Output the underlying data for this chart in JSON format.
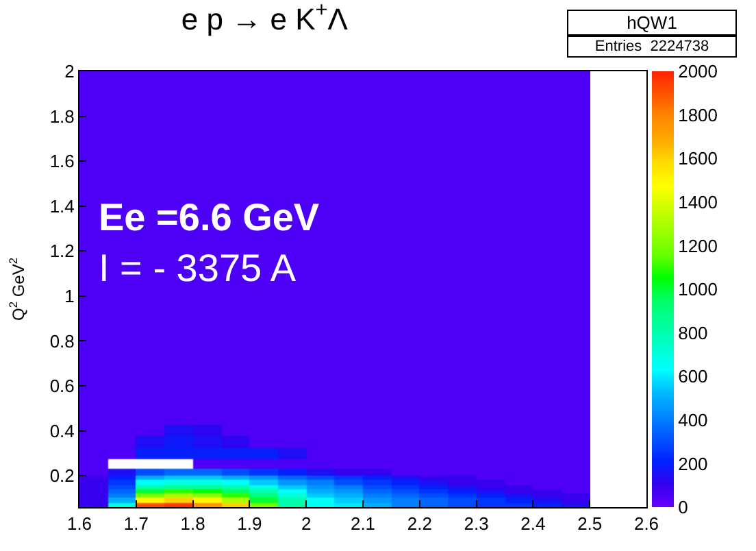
{
  "chart_data": {
    "type": "heatmap",
    "title": "e p → e K$^{+}$Λ",
    "ylabel": "Q$^{2}$ GeV$^{2}$",
    "annotations": [
      "Ee =6.6 GeV",
      "I = - 3375 A",
      "hQW1",
      "Entries  2224738"
    ],
    "x": [
      1.625,
      1.675,
      1.725,
      1.775,
      1.825,
      1.875,
      1.925,
      1.975,
      2.025,
      2.075,
      2.125,
      2.175,
      2.225,
      2.275,
      2.325,
      2.375,
      2.425,
      2.475
    ],
    "y": [
      1.95,
      1.85,
      1.75,
      1.65,
      1.55,
      1.45,
      1.35,
      1.25,
      1.15,
      1.05,
      0.95,
      0.85,
      0.75,
      0.65,
      0.55,
      0.45,
      0.4,
      0.35,
      0.3,
      0.25,
      0.21,
      0.19,
      0.17,
      0.15,
      0.13,
      0.11,
      0.09,
      0.07
    ],
    "cells": [
      [
        50,
        50,
        50,
        50,
        50,
        50,
        50,
        50,
        50,
        50,
        50,
        50,
        50,
        50,
        50,
        50,
        50,
        50
      ],
      [
        50,
        50,
        50,
        50,
        50,
        50,
        50,
        50,
        50,
        50,
        50,
        50,
        50,
        50,
        50,
        50,
        50,
        50
      ],
      [
        50,
        50,
        50,
        50,
        50,
        50,
        50,
        50,
        50,
        50,
        50,
        50,
        50,
        50,
        50,
        50,
        50,
        50
      ],
      [
        50,
        50,
        50,
        50,
        50,
        50,
        50,
        50,
        50,
        50,
        50,
        50,
        50,
        50,
        50,
        50,
        50,
        50
      ],
      [
        50,
        50,
        50,
        50,
        50,
        50,
        50,
        50,
        50,
        50,
        50,
        50,
        50,
        50,
        50,
        50,
        50,
        50
      ],
      [
        50,
        50,
        50,
        50,
        50,
        50,
        50,
        50,
        50,
        50,
        50,
        50,
        50,
        50,
        50,
        50,
        50,
        50
      ],
      [
        50,
        50,
        50,
        50,
        50,
        50,
        50,
        50,
        50,
        50,
        50,
        50,
        50,
        50,
        50,
        50,
        50,
        50
      ],
      [
        50,
        50,
        50,
        50,
        50,
        50,
        50,
        50,
        50,
        50,
        50,
        50,
        50,
        50,
        50,
        50,
        50,
        50
      ],
      [
        50,
        50,
        50,
        50,
        50,
        50,
        50,
        50,
        50,
        50,
        50,
        50,
        50,
        50,
        50,
        50,
        50,
        50
      ],
      [
        50,
        50,
        50,
        50,
        50,
        50,
        50,
        50,
        50,
        50,
        50,
        50,
        50,
        50,
        50,
        50,
        50,
        50
      ],
      [
        50,
        50,
        50,
        50,
        50,
        50,
        50,
        50,
        50,
        50,
        50,
        50,
        50,
        50,
        50,
        50,
        50,
        50
      ],
      [
        50,
        50,
        50,
        50,
        50,
        50,
        50,
        50,
        50,
        50,
        50,
        50,
        50,
        50,
        50,
        50,
        50,
        50
      ],
      [
        50,
        50,
        50,
        50,
        50,
        50,
        50,
        50,
        50,
        50,
        50,
        50,
        50,
        50,
        50,
        50,
        50,
        50
      ],
      [
        50,
        50,
        50,
        50,
        50,
        50,
        50,
        50,
        50,
        50,
        50,
        50,
        50,
        50,
        50,
        50,
        50,
        50
      ],
      [
        50,
        50,
        50,
        50,
        50,
        50,
        50,
        50,
        50,
        50,
        50,
        50,
        50,
        50,
        50,
        50,
        50,
        50
      ],
      [
        50,
        50,
        50,
        50,
        50,
        50,
        50,
        50,
        50,
        50,
        50,
        50,
        50,
        50,
        50,
        50,
        50,
        50
      ],
      [
        50,
        50,
        50,
        150,
        120,
        50,
        50,
        50,
        50,
        50,
        50,
        50,
        50,
        50,
        50,
        50,
        50,
        50
      ],
      [
        50,
        50,
        150,
        180,
        150,
        120,
        50,
        50,
        50,
        50,
        50,
        50,
        50,
        50,
        50,
        50,
        50,
        50
      ],
      [
        50,
        50,
        200,
        200,
        200,
        200,
        200,
        150,
        50,
        50,
        50,
        50,
        50,
        50,
        50,
        50,
        50,
        50
      ],
      [
        50,
        null,
        null,
        null,
        50,
        50,
        50,
        50,
        50,
        50,
        50,
        50,
        50,
        50,
        50,
        50,
        50,
        50
      ],
      [
        50,
        150,
        300,
        350,
        350,
        300,
        250,
        200,
        150,
        100,
        100,
        50,
        50,
        50,
        50,
        50,
        50,
        50
      ],
      [
        80,
        200,
        500,
        550,
        550,
        500,
        450,
        350,
        300,
        250,
        200,
        150,
        100,
        100,
        50,
        50,
        50,
        50
      ],
      [
        100,
        250,
        650,
        700,
        700,
        650,
        550,
        450,
        400,
        300,
        250,
        200,
        150,
        100,
        100,
        50,
        50,
        50
      ],
      [
        100,
        300,
        800,
        850,
        850,
        800,
        700,
        550,
        450,
        400,
        300,
        250,
        200,
        150,
        100,
        100,
        50,
        50
      ],
      [
        100,
        350,
        1000,
        1100,
        1050,
        950,
        800,
        650,
        500,
        450,
        350,
        300,
        250,
        200,
        150,
        100,
        100,
        50
      ],
      [
        100,
        400,
        1200,
        1300,
        1250,
        1100,
        900,
        700,
        550,
        500,
        400,
        350,
        300,
        250,
        200,
        150,
        100,
        100
      ],
      [
        100,
        500,
        1500,
        1600,
        1500,
        1300,
        1000,
        800,
        650,
        550,
        450,
        400,
        350,
        300,
        250,
        200,
        150,
        100
      ],
      [
        100,
        700,
        1900,
        1950,
        1750,
        1600,
        1200,
        800,
        650,
        600,
        500,
        400,
        350,
        300,
        250,
        250,
        200,
        150
      ]
    ],
    "colors": [
      "#6600ff",
      "#3300ee",
      "#0022ff",
      "#0055ff",
      "#0088ff",
      "#00bbff",
      "#00ffff",
      "#00ffcc",
      "#00ff99",
      "#00ff66",
      "#00ff00",
      "#66ff00",
      "#99ff00",
      "#ccff00",
      "#ffff00",
      "#ffdd00",
      "#ffaa00",
      "#ff8800",
      "#ff5500",
      "#ff2200"
    ],
    "clim": [
      0,
      2000
    ],
    "cticks": [
      0,
      200,
      400,
      600,
      800,
      1000,
      1200,
      1400,
      1600,
      1800,
      2000
    ],
    "xlim": [
      1.6,
      2.6
    ],
    "xticks": [
      1.6,
      1.7,
      1.8,
      1.9,
      2,
      2.1,
      2.2,
      2.3,
      2.4,
      2.5,
      2.6
    ],
    "ylim": [
      0.06,
      2
    ],
    "yticks": [
      0.2,
      0.4,
      0.6,
      0.8,
      1,
      1.2,
      1.4,
      1.6,
      1.8,
      2
    ]
  }
}
